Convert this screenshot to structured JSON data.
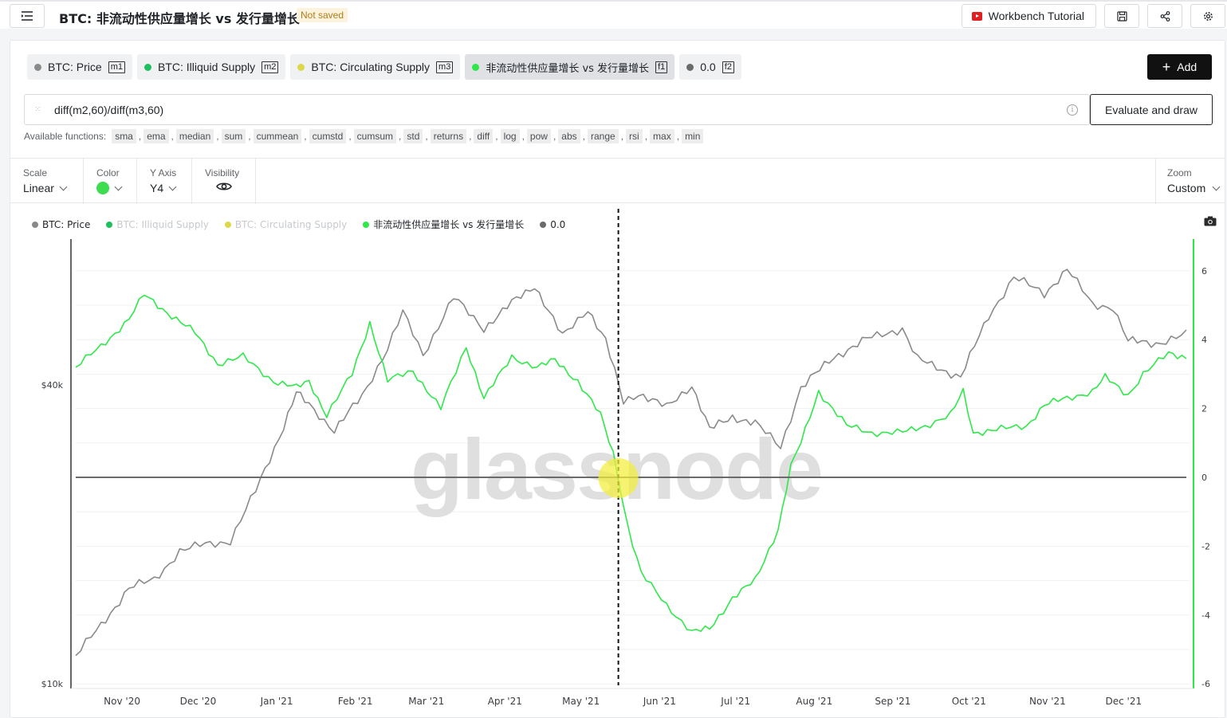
{
  "header": {
    "title": "BTC: 非流动性供应量增长 vs 发行量增长",
    "status": "Not saved",
    "tutorial_label": "Workbench Tutorial"
  },
  "metrics": [
    {
      "label": "BTC: Price",
      "badge": "m1",
      "color": "#8a8a8a"
    },
    {
      "label": "BTC: Illiquid Supply",
      "badge": "m2",
      "color": "#1fbf5f"
    },
    {
      "label": "BTC: Circulating Supply",
      "badge": "m3",
      "color": "#dcd84a"
    },
    {
      "label": "非流动性供应量增长 vs 发行量增长",
      "badge": "f1",
      "color": "#2ee84a"
    },
    {
      "label": "0.0",
      "badge": "f2",
      "color": "#6b6b6b"
    }
  ],
  "add_label": "Add",
  "formula": {
    "expression": "diff(m2,60)/diff(m3,60)",
    "evaluate_label": "Evaluate and draw"
  },
  "functions": {
    "label": "Available functions:",
    "items": [
      "sma",
      "ema",
      "median",
      "sum",
      "cummean",
      "cumstd",
      "cumsum",
      "std",
      "returns",
      "diff",
      "log",
      "pow",
      "abs",
      "range",
      "rsi",
      "max",
      "min"
    ]
  },
  "settings": {
    "scale_label": "Scale",
    "scale_value": "Linear",
    "color_label": "Color",
    "yaxis_label": "Y Axis",
    "yaxis_value": "Y4",
    "visibility_label": "Visibility",
    "zoom_label": "Zoom",
    "zoom_value": "Custom"
  },
  "chart_data": {
    "type": "line",
    "watermark": "glassnode",
    "x_ticks": [
      "Nov '20",
      "Dec '20",
      "Jan '21",
      "Feb '21",
      "Mar '21",
      "Apr '21",
      "May '21",
      "Jun '21",
      "Jul '21",
      "Aug '21",
      "Sep '21",
      "Oct '21",
      "Nov '21",
      "Dec '21"
    ],
    "y_left_ticks": [
      "$40k",
      "$10k"
    ],
    "y_right_ticks": [
      "6",
      "4",
      "2",
      "0",
      "-2",
      "-4",
      "-6"
    ],
    "y_right_lim": [
      -6,
      6
    ],
    "legend": [
      {
        "name": "BTC: Price",
        "color": "#8a8a8a",
        "muted": false
      },
      {
        "name": "BTC: Illiquid Supply",
        "color": "#1fbf5f",
        "muted": true
      },
      {
        "name": "BTC: Circulating Supply",
        "color": "#dcd84a",
        "muted": true
      },
      {
        "name": "非流动性供应量增长 vs 发行量增长",
        "color": "#2ee84a",
        "muted": false
      },
      {
        "name": "0.0",
        "color": "#6b6b6b",
        "muted": false
      }
    ],
    "series": [
      {
        "name": "BTC: Price",
        "axis": "left-log",
        "color": "#8a8a8a",
        "points": [
          [
            "2020-10-15",
            11400
          ],
          [
            "2020-10-25",
            13100
          ],
          [
            "2020-11-05",
            15600
          ],
          [
            "2020-11-15",
            16200
          ],
          [
            "2020-11-25",
            18500
          ],
          [
            "2020-12-05",
            19100
          ],
          [
            "2020-12-15",
            19400
          ],
          [
            "2020-12-25",
            24500
          ],
          [
            "2021-01-05",
            33000
          ],
          [
            "2021-01-10",
            38500
          ],
          [
            "2021-01-15",
            36500
          ],
          [
            "2021-01-25",
            32400
          ],
          [
            "2021-02-05",
            38000
          ],
          [
            "2021-02-15",
            47500
          ],
          [
            "2021-02-21",
            56000
          ],
          [
            "2021-03-01",
            46000
          ],
          [
            "2021-03-13",
            60000
          ],
          [
            "2021-03-25",
            52000
          ],
          [
            "2021-04-05",
            58500
          ],
          [
            "2021-04-14",
            63500
          ],
          [
            "2021-04-25",
            50000
          ],
          [
            "2021-05-05",
            57000
          ],
          [
            "2021-05-12",
            49000
          ],
          [
            "2021-05-19",
            37000
          ],
          [
            "2021-05-25",
            38500
          ],
          [
            "2021-06-05",
            36000
          ],
          [
            "2021-06-15",
            40000
          ],
          [
            "2021-06-22",
            32500
          ],
          [
            "2021-07-01",
            34500
          ],
          [
            "2021-07-10",
            33500
          ],
          [
            "2021-07-20",
            30000
          ],
          [
            "2021-07-28",
            39500
          ],
          [
            "2021-08-10",
            45500
          ],
          [
            "2021-08-23",
            49500
          ],
          [
            "2021-09-06",
            52000
          ],
          [
            "2021-09-12",
            45000
          ],
          [
            "2021-09-29",
            41500
          ],
          [
            "2021-10-10",
            55000
          ],
          [
            "2021-10-20",
            66000
          ],
          [
            "2021-11-01",
            61000
          ],
          [
            "2021-11-10",
            68500
          ],
          [
            "2021-11-20",
            58000
          ],
          [
            "2021-11-28",
            57500
          ],
          [
            "2021-12-04",
            49000
          ],
          [
            "2021-12-15",
            48500
          ],
          [
            "2021-12-27",
            50500
          ]
        ]
      },
      {
        "name": "非流动性供应量增长 vs 发行量增长",
        "axis": "right",
        "color": "#2ee84a",
        "points": [
          [
            "2020-10-15",
            3.2
          ],
          [
            "2020-10-25",
            3.8
          ],
          [
            "2020-11-05",
            4.6
          ],
          [
            "2020-11-11",
            5.3
          ],
          [
            "2020-11-20",
            4.8
          ],
          [
            "2020-12-01",
            4.2
          ],
          [
            "2020-12-10",
            3.3
          ],
          [
            "2020-12-20",
            3.5
          ],
          [
            "2021-01-01",
            2.8
          ],
          [
            "2021-01-10",
            2.6
          ],
          [
            "2021-01-15",
            2.8
          ],
          [
            "2021-01-22",
            1.8
          ],
          [
            "2021-02-01",
            3.0
          ],
          [
            "2021-02-08",
            4.5
          ],
          [
            "2021-02-15",
            2.8
          ],
          [
            "2021-02-25",
            3.1
          ],
          [
            "2021-03-08",
            2.0
          ],
          [
            "2021-03-18",
            3.8
          ],
          [
            "2021-03-25",
            2.3
          ],
          [
            "2021-04-05",
            3.5
          ],
          [
            "2021-04-15",
            3.2
          ],
          [
            "2021-04-22",
            3.4
          ],
          [
            "2021-05-01",
            2.8
          ],
          [
            "2021-05-10",
            1.8
          ],
          [
            "2021-05-15",
            0.7
          ],
          [
            "2021-05-21",
            -1.5
          ],
          [
            "2021-05-26",
            -2.8
          ],
          [
            "2021-06-05",
            -3.7
          ],
          [
            "2021-06-15",
            -4.5
          ],
          [
            "2021-06-22",
            -4.4
          ],
          [
            "2021-07-01",
            -3.5
          ],
          [
            "2021-07-10",
            -3.0
          ],
          [
            "2021-07-19",
            -1.5
          ],
          [
            "2021-07-24",
            0.3
          ],
          [
            "2021-07-28",
            1.0
          ],
          [
            "2021-08-04",
            2.5
          ],
          [
            "2021-08-15",
            1.5
          ],
          [
            "2021-08-25",
            1.3
          ],
          [
            "2021-09-06",
            1.3
          ],
          [
            "2021-09-15",
            1.5
          ],
          [
            "2021-09-25",
            1.8
          ],
          [
            "2021-09-30",
            2.5
          ],
          [
            "2021-10-04",
            1.3
          ],
          [
            "2021-10-15",
            1.4
          ],
          [
            "2021-10-25",
            1.5
          ],
          [
            "2021-11-01",
            2.1
          ],
          [
            "2021-11-10",
            2.3
          ],
          [
            "2021-11-20",
            2.5
          ],
          [
            "2021-11-25",
            2.9
          ],
          [
            "2021-12-04",
            2.4
          ],
          [
            "2021-12-10",
            3.0
          ],
          [
            "2021-12-20",
            3.6
          ],
          [
            "2021-12-27",
            3.5
          ]
        ]
      },
      {
        "name": "0.0",
        "axis": "right",
        "color": "#6b6b6b",
        "points": [
          [
            "2020-10-15",
            0
          ],
          [
            "2021-12-27",
            0
          ]
        ]
      }
    ],
    "crosshair_date": "2021-05-17"
  }
}
